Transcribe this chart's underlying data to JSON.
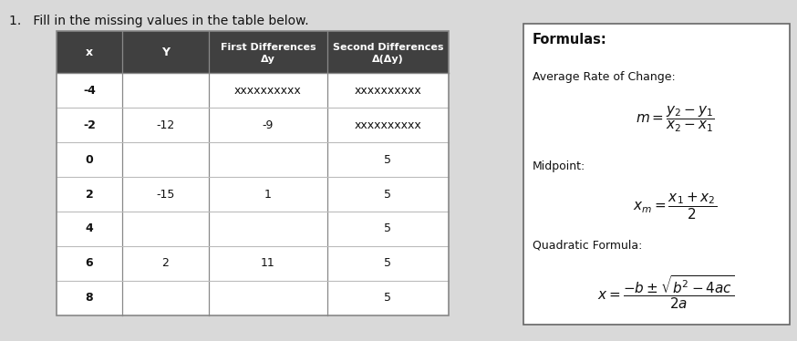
{
  "title": "1.   Fill in the missing values in the table below.",
  "col_headers_line1": [
    "x",
    "Y",
    "First Differences",
    "Second Differences"
  ],
  "col_headers_line2": [
    "",
    "",
    "Δy",
    "Δ(Δy)"
  ],
  "rows": [
    [
      "-4",
      "",
      "xxxxxxxxxx",
      "xxxxxxxxxx"
    ],
    [
      "-2",
      "-12",
      "-9",
      "xxxxxxxxxx"
    ],
    [
      "0",
      "",
      "",
      "5"
    ],
    [
      "2",
      "-15",
      "1",
      "5"
    ],
    [
      "4",
      "",
      "",
      "5"
    ],
    [
      "6",
      "2",
      "11",
      "5"
    ],
    [
      "8",
      "",
      "",
      "5"
    ]
  ],
  "bg_color": "#d9d9d9",
  "table_bg": "#ffffff",
  "header_bg": "#404040",
  "header_text": "#ffffff",
  "cell_text": "#111111",
  "border_color": "#888888",
  "row_line_color": "#bbbbbb",
  "formula_box_bg": "#ffffff",
  "formula_box_border": "#666666",
  "formulas_title": "Formulas:",
  "formula1_label": "Average Rate of Change:",
  "formula1_math": "$m = \\dfrac{y_2 - y_1}{x_2 - x_1}$",
  "formula2_label": "Midpoint:",
  "formula2_math": "$x_m = \\dfrac{x_1 + x_2}{2}$",
  "formula3_label": "Quadratic Formula:",
  "formula3_math": "$x = \\dfrac{-b \\pm \\sqrt{b^2 - 4ac}}{2a}$"
}
